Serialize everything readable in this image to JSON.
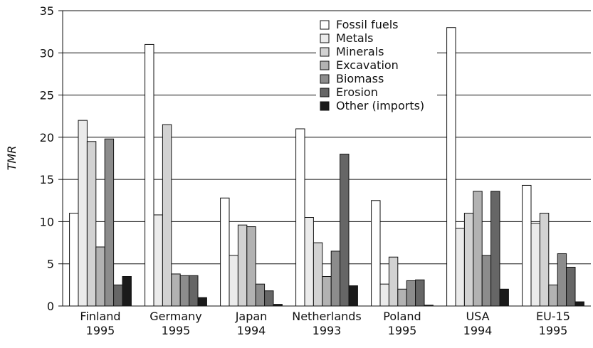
{
  "chart_data": {
    "type": "bar",
    "y_label": "TMR",
    "categories": [
      [
        "Finland",
        "1995"
      ],
      [
        "Germany",
        "1995"
      ],
      [
        "Japan",
        "1994"
      ],
      [
        "Netherlands",
        "1993"
      ],
      [
        "Poland",
        "1995"
      ],
      [
        "USA",
        "1994"
      ],
      [
        "EU-15",
        "1995"
      ]
    ],
    "series": [
      {
        "name": "Fossil fuels",
        "color": "#ffffff",
        "values": [
          11,
          31,
          12.8,
          21,
          12.5,
          33,
          14.3
        ]
      },
      {
        "name": "Metals",
        "color": "#ebebeb",
        "values": [
          22,
          10.8,
          6,
          10.5,
          2.6,
          9.2,
          9.8
        ]
      },
      {
        "name": "Minerals",
        "color": "#d2d2d2",
        "values": [
          19.5,
          21.5,
          9.6,
          7.5,
          5.8,
          11,
          11
        ]
      },
      {
        "name": "Excavation",
        "color": "#b2b2b2",
        "values": [
          7,
          3.8,
          9.4,
          3.5,
          2,
          13.6,
          2.5
        ]
      },
      {
        "name": "Biomass",
        "color": "#8c8c8c",
        "values": [
          19.8,
          3.6,
          2.6,
          6.5,
          3,
          6,
          6.2
        ]
      },
      {
        "name": "Erosion",
        "color": "#666666",
        "values": [
          2.5,
          3.6,
          1.8,
          18,
          3.1,
          13.6,
          4.6
        ]
      },
      {
        "name": "Other (imports)",
        "color": "#1a1a1a",
        "values": [
          3.5,
          1,
          0.2,
          2.4,
          0.1,
          2,
          0.5
        ]
      }
    ],
    "ylim": [
      0,
      35
    ],
    "yticks": [
      0,
      5,
      10,
      15,
      20,
      25,
      30,
      35
    ],
    "grid": true
  }
}
